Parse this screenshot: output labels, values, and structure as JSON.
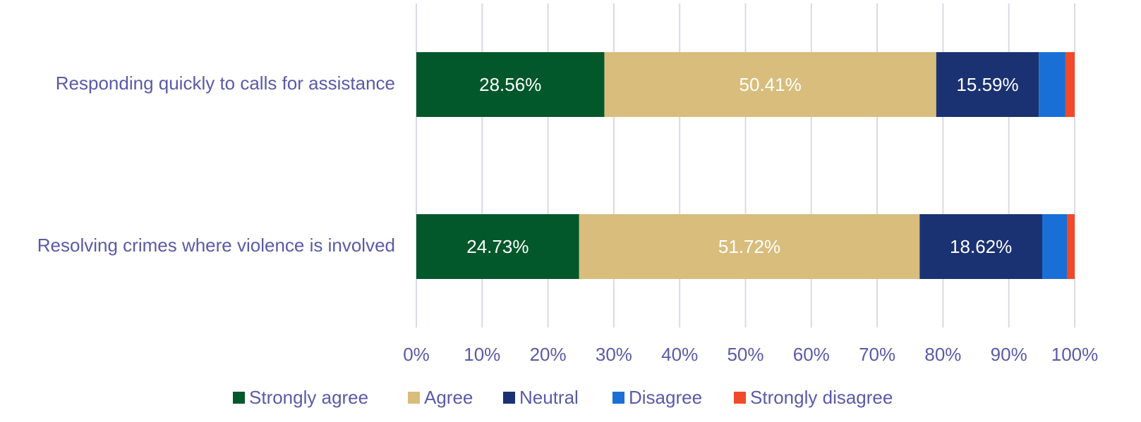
{
  "chart_data": {
    "type": "stacked_barh",
    "categories": [
      "Responding quickly to calls for assistance",
      "Resolving crimes where violence is involved"
    ],
    "series": [
      {
        "name": "Strongly agree",
        "color": "#03582b",
        "values": [
          28.56,
          24.73
        ],
        "value_labels": [
          "28.56%",
          "24.73%"
        ]
      },
      {
        "name": "Agree",
        "color": "#d8bd7c",
        "values": [
          50.41,
          51.72
        ],
        "value_labels": [
          "50.41%",
          "51.72%"
        ]
      },
      {
        "name": "Neutral",
        "color": "#1b3272",
        "values": [
          15.59,
          18.62
        ],
        "value_labels": [
          "15.59%",
          "18.62%"
        ]
      },
      {
        "name": "Disagree",
        "color": "#1a6fd6",
        "values": [
          4.04,
          3.75
        ]
      },
      {
        "name": "Strongly disagree",
        "color": "#f04a2a",
        "values": [
          1.4,
          1.18
        ]
      }
    ],
    "xlim": [
      0,
      100
    ],
    "xticks": [
      {
        "value": 0,
        "label": "0%"
      },
      {
        "value": 10,
        "label": "10%"
      },
      {
        "value": 20,
        "label": "20%"
      },
      {
        "value": 30,
        "label": "30%"
      },
      {
        "value": 40,
        "label": "40%"
      },
      {
        "value": 50,
        "label": "50%"
      },
      {
        "value": 60,
        "label": "60%"
      },
      {
        "value": 70,
        "label": "70%"
      },
      {
        "value": 80,
        "label": "80%"
      },
      {
        "value": 90,
        "label": "90%"
      },
      {
        "value": 100,
        "label": "100%"
      }
    ],
    "grid": true,
    "legend": "bottom"
  }
}
